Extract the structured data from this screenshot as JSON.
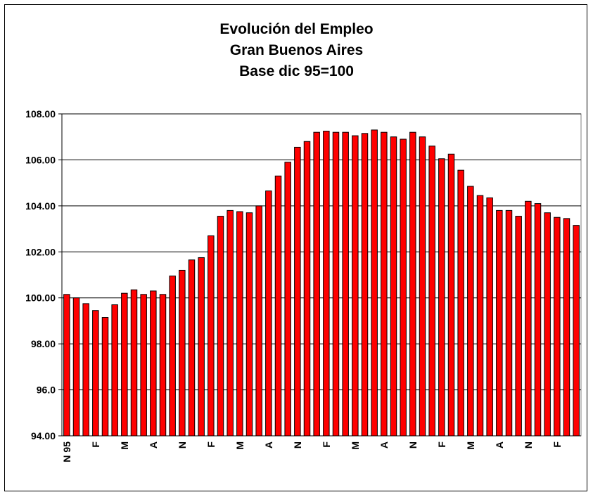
{
  "chart_data": {
    "type": "bar",
    "title_lines": [
      "Evolución del Empleo",
      "Gran Buenos Aires",
      "Base dic 95=100"
    ],
    "xlabel": "",
    "ylabel": "",
    "ylim": [
      94,
      108
    ],
    "yticks": [
      "94.00",
      "96.0",
      "98.00",
      "100.00",
      "102.00",
      "104.00",
      "106.00",
      "108.00"
    ],
    "grid": true,
    "bar_color": "#ff0000",
    "x_tick_labels": [
      {
        "index": 0,
        "label": "N 95"
      },
      {
        "index": 3,
        "label": "F"
      },
      {
        "index": 6,
        "label": "M"
      },
      {
        "index": 9,
        "label": "A"
      },
      {
        "index": 12,
        "label": "N"
      },
      {
        "index": 15,
        "label": "F"
      },
      {
        "index": 18,
        "label": "M"
      },
      {
        "index": 21,
        "label": "A"
      },
      {
        "index": 24,
        "label": "N"
      },
      {
        "index": 27,
        "label": "F"
      },
      {
        "index": 30,
        "label": "M"
      },
      {
        "index": 33,
        "label": "A"
      },
      {
        "index": 36,
        "label": "N"
      },
      {
        "index": 39,
        "label": "F"
      },
      {
        "index": 42,
        "label": "M"
      },
      {
        "index": 45,
        "label": "A"
      },
      {
        "index": 48,
        "label": "N"
      },
      {
        "index": 51,
        "label": "F"
      }
    ],
    "values": [
      100.15,
      100.0,
      99.75,
      99.45,
      99.15,
      99.7,
      100.2,
      100.35,
      100.15,
      100.3,
      100.15,
      100.95,
      101.2,
      101.65,
      101.75,
      102.7,
      103.55,
      103.8,
      103.75,
      103.7,
      104.0,
      104.65,
      105.3,
      105.9,
      106.55,
      106.8,
      107.2,
      107.25,
      107.2,
      107.2,
      107.05,
      107.15,
      107.3,
      107.2,
      107.0,
      106.9,
      107.2,
      107.0,
      106.6,
      106.05,
      106.25,
      105.55,
      104.85,
      104.45,
      104.35,
      103.8,
      103.8,
      103.55,
      104.2,
      104.1,
      103.7,
      103.5,
      103.45,
      103.15
    ]
  }
}
